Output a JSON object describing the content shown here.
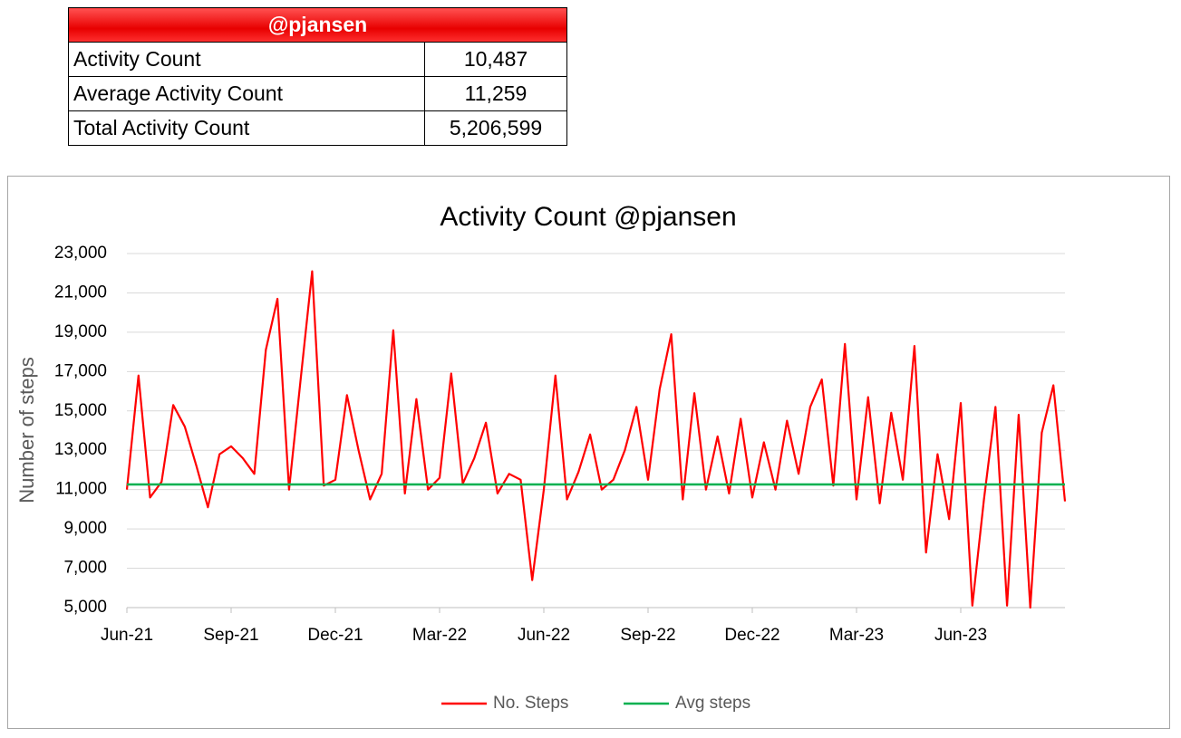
{
  "table": {
    "title": "@pjansen",
    "rows": [
      [
        "Activity Count",
        "10,487"
      ],
      [
        "Average Activity Count",
        "11,259"
      ],
      [
        "Total Activity Count",
        "5,206,599"
      ]
    ]
  },
  "chart_data": {
    "type": "line",
    "title": "Activity Count @pjansen",
    "y_label": "Number of steps",
    "categories": [
      "Jun-21",
      null,
      null,
      null,
      null,
      null,
      null,
      null,
      null,
      "Sep-21",
      null,
      null,
      null,
      null,
      null,
      null,
      null,
      null,
      "Dec-21",
      null,
      null,
      null,
      null,
      null,
      null,
      null,
      null,
      "Mar-22",
      null,
      null,
      null,
      null,
      null,
      null,
      null,
      null,
      "Jun-22",
      null,
      null,
      null,
      null,
      null,
      null,
      null,
      null,
      "Sep-22",
      null,
      null,
      null,
      null,
      null,
      null,
      null,
      null,
      "Dec-22",
      null,
      null,
      null,
      null,
      null,
      null,
      null,
      null,
      "Mar-23",
      null,
      null,
      null,
      null,
      null,
      null,
      null,
      null,
      "Jun-23",
      null,
      null,
      null,
      null,
      null,
      null,
      null,
      null,
      null
    ],
    "series": [
      {
        "name": "No. Steps",
        "color": "#ff0000",
        "values": [
          11000,
          16800,
          10600,
          11400,
          15300,
          14200,
          12200,
          10100,
          12800,
          13200,
          12600,
          11800,
          18100,
          20700,
          11000,
          16600,
          22100,
          11200,
          11500,
          15800,
          13000,
          10500,
          11800,
          19100,
          10800,
          15600,
          11000,
          11600,
          16900,
          11300,
          12600,
          14400,
          10800,
          11800,
          11500,
          6400,
          11000,
          16800,
          10500,
          11900,
          13800,
          11000,
          11500,
          13000,
          15200,
          11500,
          16100,
          18900,
          10500,
          15900,
          11000,
          13700,
          10800,
          14600,
          10600,
          13400,
          11000,
          14500,
          11800,
          15200,
          16600,
          11200,
          18400,
          10500,
          15700,
          10300,
          14900,
          11500,
          18300,
          7800,
          12800,
          9500,
          15400,
          5100,
          10500,
          15200,
          5100,
          14800,
          5000,
          13900,
          16300,
          10400
        ]
      },
      {
        "name": "Avg steps",
        "color": "#00b050",
        "values": [
          11259,
          11259,
          11259,
          11259,
          11259,
          11259,
          11259,
          11259,
          11259,
          11259,
          11259,
          11259,
          11259,
          11259,
          11259,
          11259,
          11259,
          11259,
          11259,
          11259,
          11259,
          11259,
          11259,
          11259,
          11259,
          11259,
          11259,
          11259,
          11259,
          11259,
          11259,
          11259,
          11259,
          11259,
          11259,
          11259,
          11259,
          11259,
          11259,
          11259,
          11259,
          11259,
          11259,
          11259,
          11259,
          11259,
          11259,
          11259,
          11259,
          11259,
          11259,
          11259,
          11259,
          11259,
          11259,
          11259,
          11259,
          11259,
          11259,
          11259,
          11259,
          11259,
          11259,
          11259,
          11259,
          11259,
          11259,
          11259,
          11259,
          11259,
          11259,
          11259,
          11259,
          11259,
          11259,
          11259,
          11259,
          11259,
          11259,
          11259,
          11259,
          11259
        ]
      }
    ],
    "ylim": [
      5000,
      23000
    ],
    "yticks": [
      {
        "value": 5000,
        "label": "5,000"
      },
      {
        "value": 7000,
        "label": "7,000"
      },
      {
        "value": 9000,
        "label": "9,000"
      },
      {
        "value": 11000,
        "label": "11,000"
      },
      {
        "value": 13000,
        "label": "13,000"
      },
      {
        "value": 15000,
        "label": "15,000"
      },
      {
        "value": 17000,
        "label": "17,000"
      },
      {
        "value": 19000,
        "label": "19,000"
      },
      {
        "value": 21000,
        "label": "21,000"
      },
      {
        "value": 23000,
        "label": "23,000"
      }
    ],
    "grid": true,
    "legend": "bottom"
  }
}
